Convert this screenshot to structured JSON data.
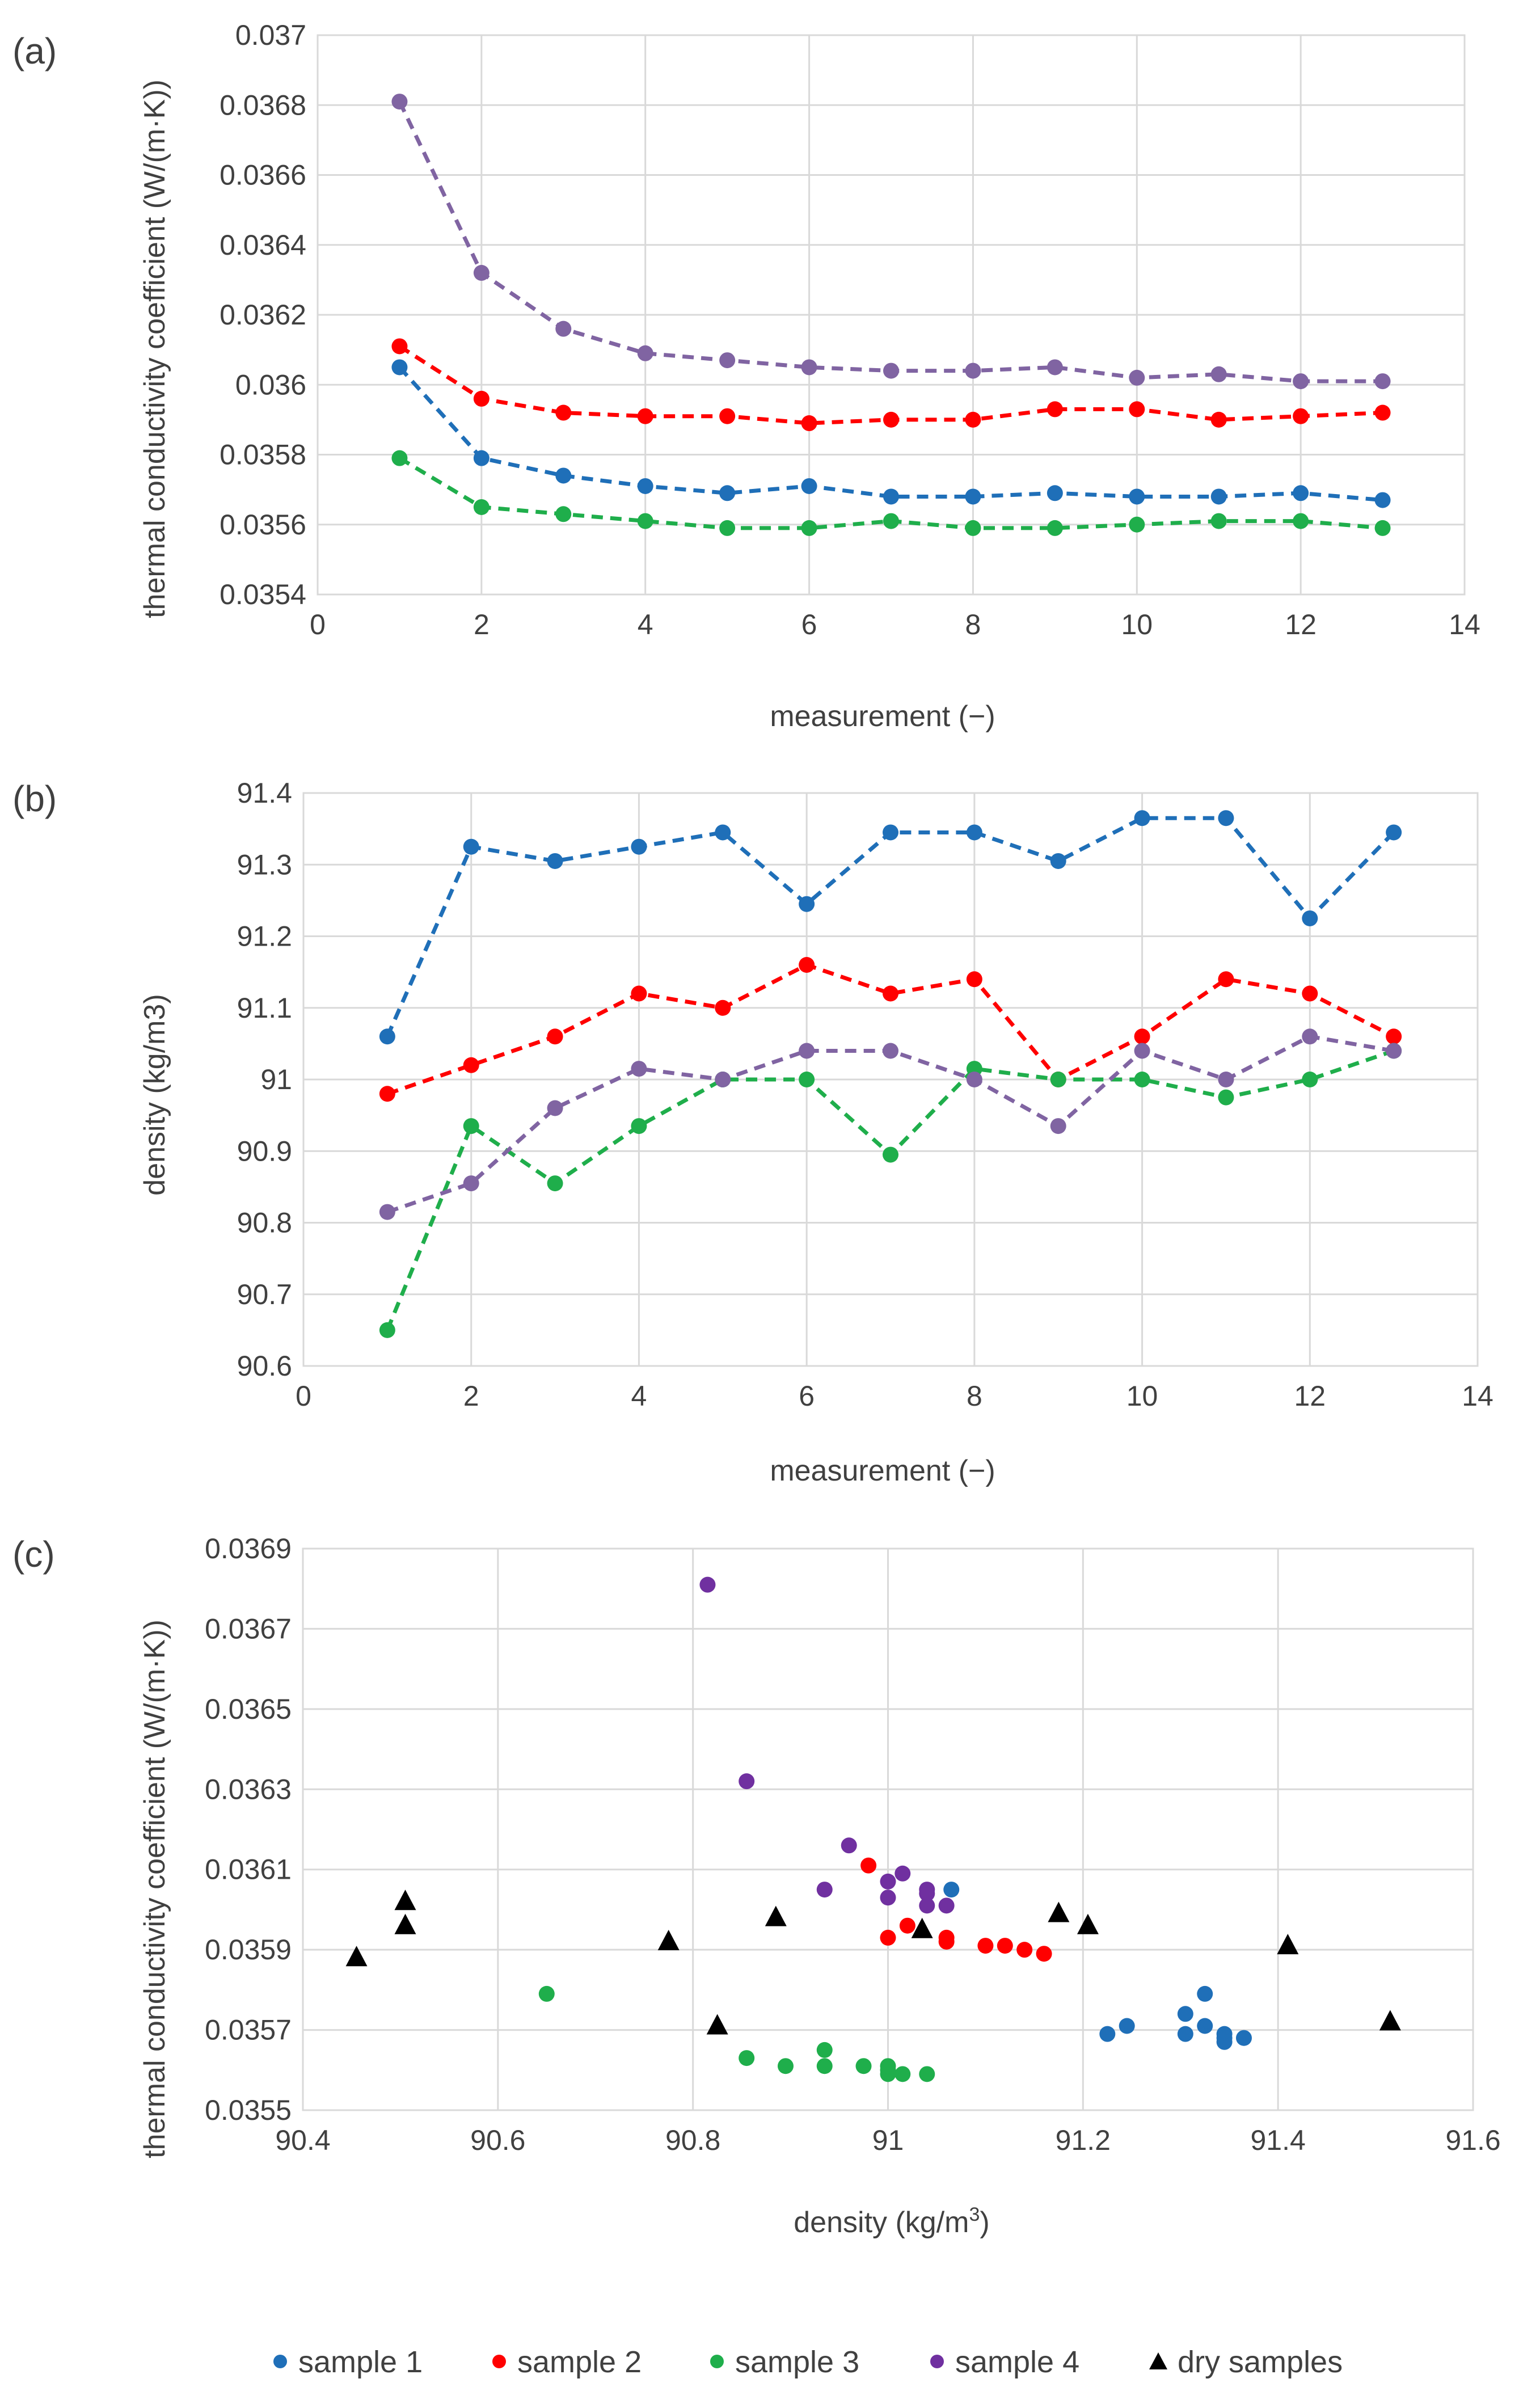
{
  "colors": {
    "sample1": "#1f6fb8",
    "sample2": "#ff0000",
    "sample3": "#1fae4b",
    "sample4": "#7030a0",
    "dry": "#000000",
    "grid": "#d9d9d9"
  },
  "legend": [
    {
      "key": "s1",
      "label": "sample 1",
      "marker": "circle",
      "color": "#1f6fb8"
    },
    {
      "key": "s2",
      "label": "sample 2",
      "marker": "circle",
      "color": "#ff0000"
    },
    {
      "key": "s3",
      "label": "sample 3",
      "marker": "circle",
      "color": "#1fae4b"
    },
    {
      "key": "s4",
      "label": "sample 4",
      "marker": "circle",
      "color": "#7030a0"
    },
    {
      "key": "dry",
      "label": "dry samples",
      "marker": "triangle",
      "color": "#000000"
    }
  ],
  "chart_data": [
    {
      "id": "a",
      "panel_label": "(a)",
      "type": "line",
      "line_style": "dashed",
      "xlabel": "measurement (−)",
      "ylabel": "thermal conductivity coefficient (W/(m·K))",
      "xlim": [
        0,
        14
      ],
      "ylim": [
        0.0354,
        0.037
      ],
      "xticks": [
        0,
        2,
        4,
        6,
        8,
        10,
        12,
        14
      ],
      "xtick_labels": [
        "0",
        "2",
        "4",
        "6",
        "8",
        "10",
        "12",
        "14"
      ],
      "yticks": [
        0.0354,
        0.0356,
        0.0358,
        0.036,
        0.0362,
        0.0364,
        0.0366,
        0.0368,
        0.037
      ],
      "ytick_labels": [
        "0.0354",
        "0.0356",
        "0.0358",
        "0.036",
        "0.0362",
        "0.0364",
        "0.0366",
        "0.0368",
        "0.037"
      ],
      "grid": true,
      "x": [
        1,
        2,
        3,
        4,
        5,
        6,
        7,
        8,
        9,
        10,
        11,
        12,
        13
      ],
      "series": [
        {
          "name": "sample 1",
          "color": "#1f6fb8",
          "values": [
            0.03605,
            0.03579,
            0.03574,
            0.03571,
            0.03569,
            0.03571,
            0.03568,
            0.03568,
            0.03569,
            0.03568,
            0.03568,
            0.03569,
            0.03567
          ]
        },
        {
          "name": "sample 2",
          "color": "#ff0000",
          "values": [
            0.03611,
            0.03596,
            0.03592,
            0.03591,
            0.03591,
            0.03589,
            0.0359,
            0.0359,
            0.03593,
            0.03593,
            0.0359,
            0.03591,
            0.03592
          ]
        },
        {
          "name": "sample 3",
          "color": "#1fae4b",
          "values": [
            0.03579,
            0.03565,
            0.03563,
            0.03561,
            0.03559,
            0.03559,
            0.03561,
            0.03559,
            0.03559,
            0.0356,
            0.03561,
            0.03561,
            0.03559
          ]
        },
        {
          "name": "sample 4",
          "color": "#8064a2",
          "values": [
            0.03681,
            0.03632,
            0.03616,
            0.03609,
            0.03607,
            0.03605,
            0.03604,
            0.03604,
            0.03605,
            0.03602,
            0.03603,
            0.03601,
            0.03601
          ]
        }
      ]
    },
    {
      "id": "b",
      "panel_label": "(b)",
      "type": "line",
      "line_style": "dashed",
      "xlabel": "measurement (−)",
      "ylabel": "density (kg/m3)",
      "xlim": [
        0,
        14
      ],
      "ylim": [
        90.6,
        91.4
      ],
      "xticks": [
        0,
        2,
        4,
        6,
        8,
        10,
        12,
        14
      ],
      "xtick_labels": [
        "0",
        "2",
        "4",
        "6",
        "8",
        "10",
        "12",
        "14"
      ],
      "yticks": [
        90.6,
        90.7,
        90.8,
        90.9,
        91.0,
        91.1,
        91.2,
        91.3,
        91.4
      ],
      "ytick_labels": [
        "90.6",
        "90.7",
        "90.8",
        "90.9",
        "91",
        "91.1",
        "91.2",
        "91.3",
        "91.4"
      ],
      "grid": true,
      "x": [
        1,
        2,
        3,
        4,
        5,
        6,
        7,
        8,
        9,
        10,
        11,
        12,
        13
      ],
      "series": [
        {
          "name": "sample 1",
          "color": "#1f6fb8",
          "values": [
            91.06,
            91.325,
            91.305,
            91.325,
            91.345,
            91.245,
            91.345,
            91.345,
            91.305,
            91.365,
            91.365,
            91.225,
            91.345
          ]
        },
        {
          "name": "sample 2",
          "color": "#ff0000",
          "values": [
            90.98,
            91.02,
            91.06,
            91.12,
            91.1,
            91.16,
            91.12,
            91.14,
            91.0,
            91.06,
            91.14,
            91.12,
            91.06
          ]
        },
        {
          "name": "sample 3",
          "color": "#1fae4b",
          "values": [
            90.65,
            90.935,
            90.855,
            90.935,
            91.0,
            91.0,
            90.895,
            91.015,
            91.0,
            91.0,
            90.975,
            91.0,
            91.04
          ]
        },
        {
          "name": "sample 4",
          "color": "#8064a2",
          "values": [
            90.815,
            90.855,
            90.96,
            91.015,
            91.0,
            91.04,
            91.04,
            91.0,
            90.935,
            91.04,
            91.0,
            91.06,
            91.04
          ]
        }
      ]
    },
    {
      "id": "c",
      "panel_label": "(c)",
      "type": "scatter",
      "xlabel_main": "density (kg/m",
      "xlabel_sup": "3",
      "xlabel_end": ")",
      "ylabel": "thermal conductivity coefficient (W/(m·K))",
      "xlim": [
        90.4,
        91.6
      ],
      "ylim": [
        0.0355,
        0.0369
      ],
      "xticks": [
        90.4,
        90.6,
        90.8,
        91.0,
        91.2,
        91.4,
        91.6
      ],
      "xtick_labels": [
        "90.4",
        "90.6",
        "90.8",
        "91",
        "91.2",
        "91.4",
        "91.6"
      ],
      "yticks": [
        0.0355,
        0.0357,
        0.0359,
        0.0361,
        0.0363,
        0.0365,
        0.0367,
        0.0369
      ],
      "ytick_labels": [
        "0.0355",
        "0.0357",
        "0.0359",
        "0.0361",
        "0.0363",
        "0.0365",
        "0.0367",
        "0.0369"
      ],
      "grid": true,
      "legend_position": "bottom",
      "series": [
        {
          "name": "sample 1",
          "marker": "circle",
          "color": "#1f6fb8",
          "x": [
            91.065,
            91.225,
            91.245,
            91.305,
            91.305,
            91.325,
            91.325,
            91.345,
            91.345,
            91.345,
            91.365
          ],
          "y": [
            0.03605,
            0.03569,
            0.03571,
            0.03569,
            0.03574,
            0.03579,
            0.03571,
            0.03567,
            0.03569,
            0.03568,
            0.03568
          ]
        },
        {
          "name": "sample 2",
          "marker": "circle",
          "color": "#ff0000",
          "x": [
            90.98,
            91.0,
            91.02,
            91.06,
            91.06,
            91.1,
            91.12,
            91.14,
            91.16
          ],
          "y": [
            0.03611,
            0.03593,
            0.03596,
            0.03593,
            0.03592,
            0.03591,
            0.03591,
            0.0359,
            0.03589
          ]
        },
        {
          "name": "sample 3",
          "marker": "circle",
          "color": "#1fae4b",
          "x": [
            90.65,
            90.855,
            90.895,
            90.935,
            90.935,
            90.975,
            91.0,
            91.0,
            91.0,
            91.015,
            91.04
          ],
          "y": [
            0.03579,
            0.03563,
            0.03561,
            0.03565,
            0.03561,
            0.03561,
            0.0356,
            0.03559,
            0.03561,
            0.03559,
            0.03559
          ]
        },
        {
          "name": "sample 4",
          "marker": "circle",
          "color": "#7030a0",
          "x": [
            90.815,
            90.855,
            90.935,
            90.96,
            91.0,
            91.0,
            91.015,
            91.04,
            91.04,
            91.04,
            91.06
          ],
          "y": [
            0.03681,
            0.03632,
            0.03605,
            0.03616,
            0.03607,
            0.03603,
            0.03609,
            0.03605,
            0.03604,
            0.03601,
            0.03601
          ]
        },
        {
          "name": "dry samples",
          "marker": "triangle",
          "color": "#000000",
          "x": [
            90.455,
            90.505,
            90.505,
            90.775,
            90.825,
            90.885,
            91.035,
            91.175,
            91.205,
            91.41,
            91.515
          ],
          "y": [
            0.03588,
            0.03602,
            0.03596,
            0.03592,
            0.03571,
            0.03598,
            0.03595,
            0.03599,
            0.03596,
            0.03591,
            0.03572
          ]
        }
      ]
    }
  ]
}
